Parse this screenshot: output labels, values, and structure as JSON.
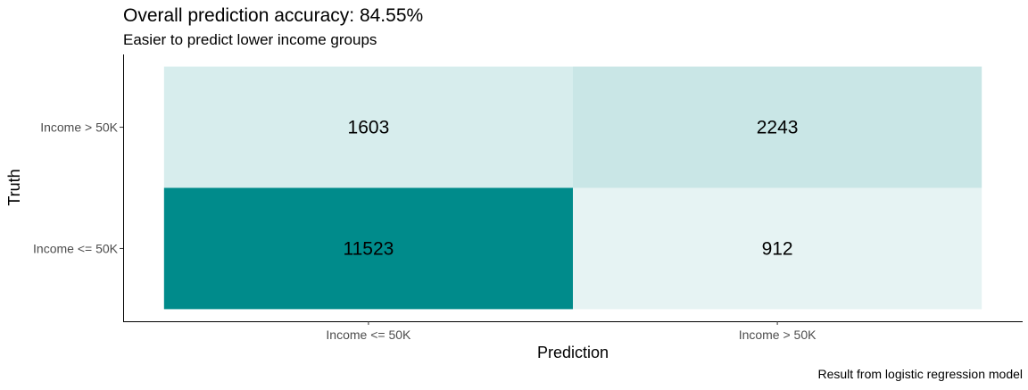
{
  "chart_data": {
    "type": "heatmap",
    "title": "Overall prediction accuracy: 84.55%",
    "subtitle": "Easier to predict lower income groups",
    "xlabel": "Prediction",
    "ylabel": "Truth",
    "caption": "Result from logistic regression model",
    "x_categories": [
      "Income <= 50K",
      "Income > 50K"
    ],
    "y_categories": [
      "Income <= 50K",
      "Income > 50K"
    ],
    "cells": [
      {
        "prediction": "Income <= 50K",
        "truth": "Income <= 50K",
        "value": 11523
      },
      {
        "prediction": "Income > 50K",
        "truth": "Income <= 50K",
        "value": 912
      },
      {
        "prediction": "Income <= 50K",
        "truth": "Income > 50K",
        "value": 1603
      },
      {
        "prediction": "Income > 50K",
        "truth": "Income > 50K",
        "value": 2243
      }
    ],
    "color_low": "#ffffff",
    "color_high": "#008b8b",
    "grid": false
  }
}
